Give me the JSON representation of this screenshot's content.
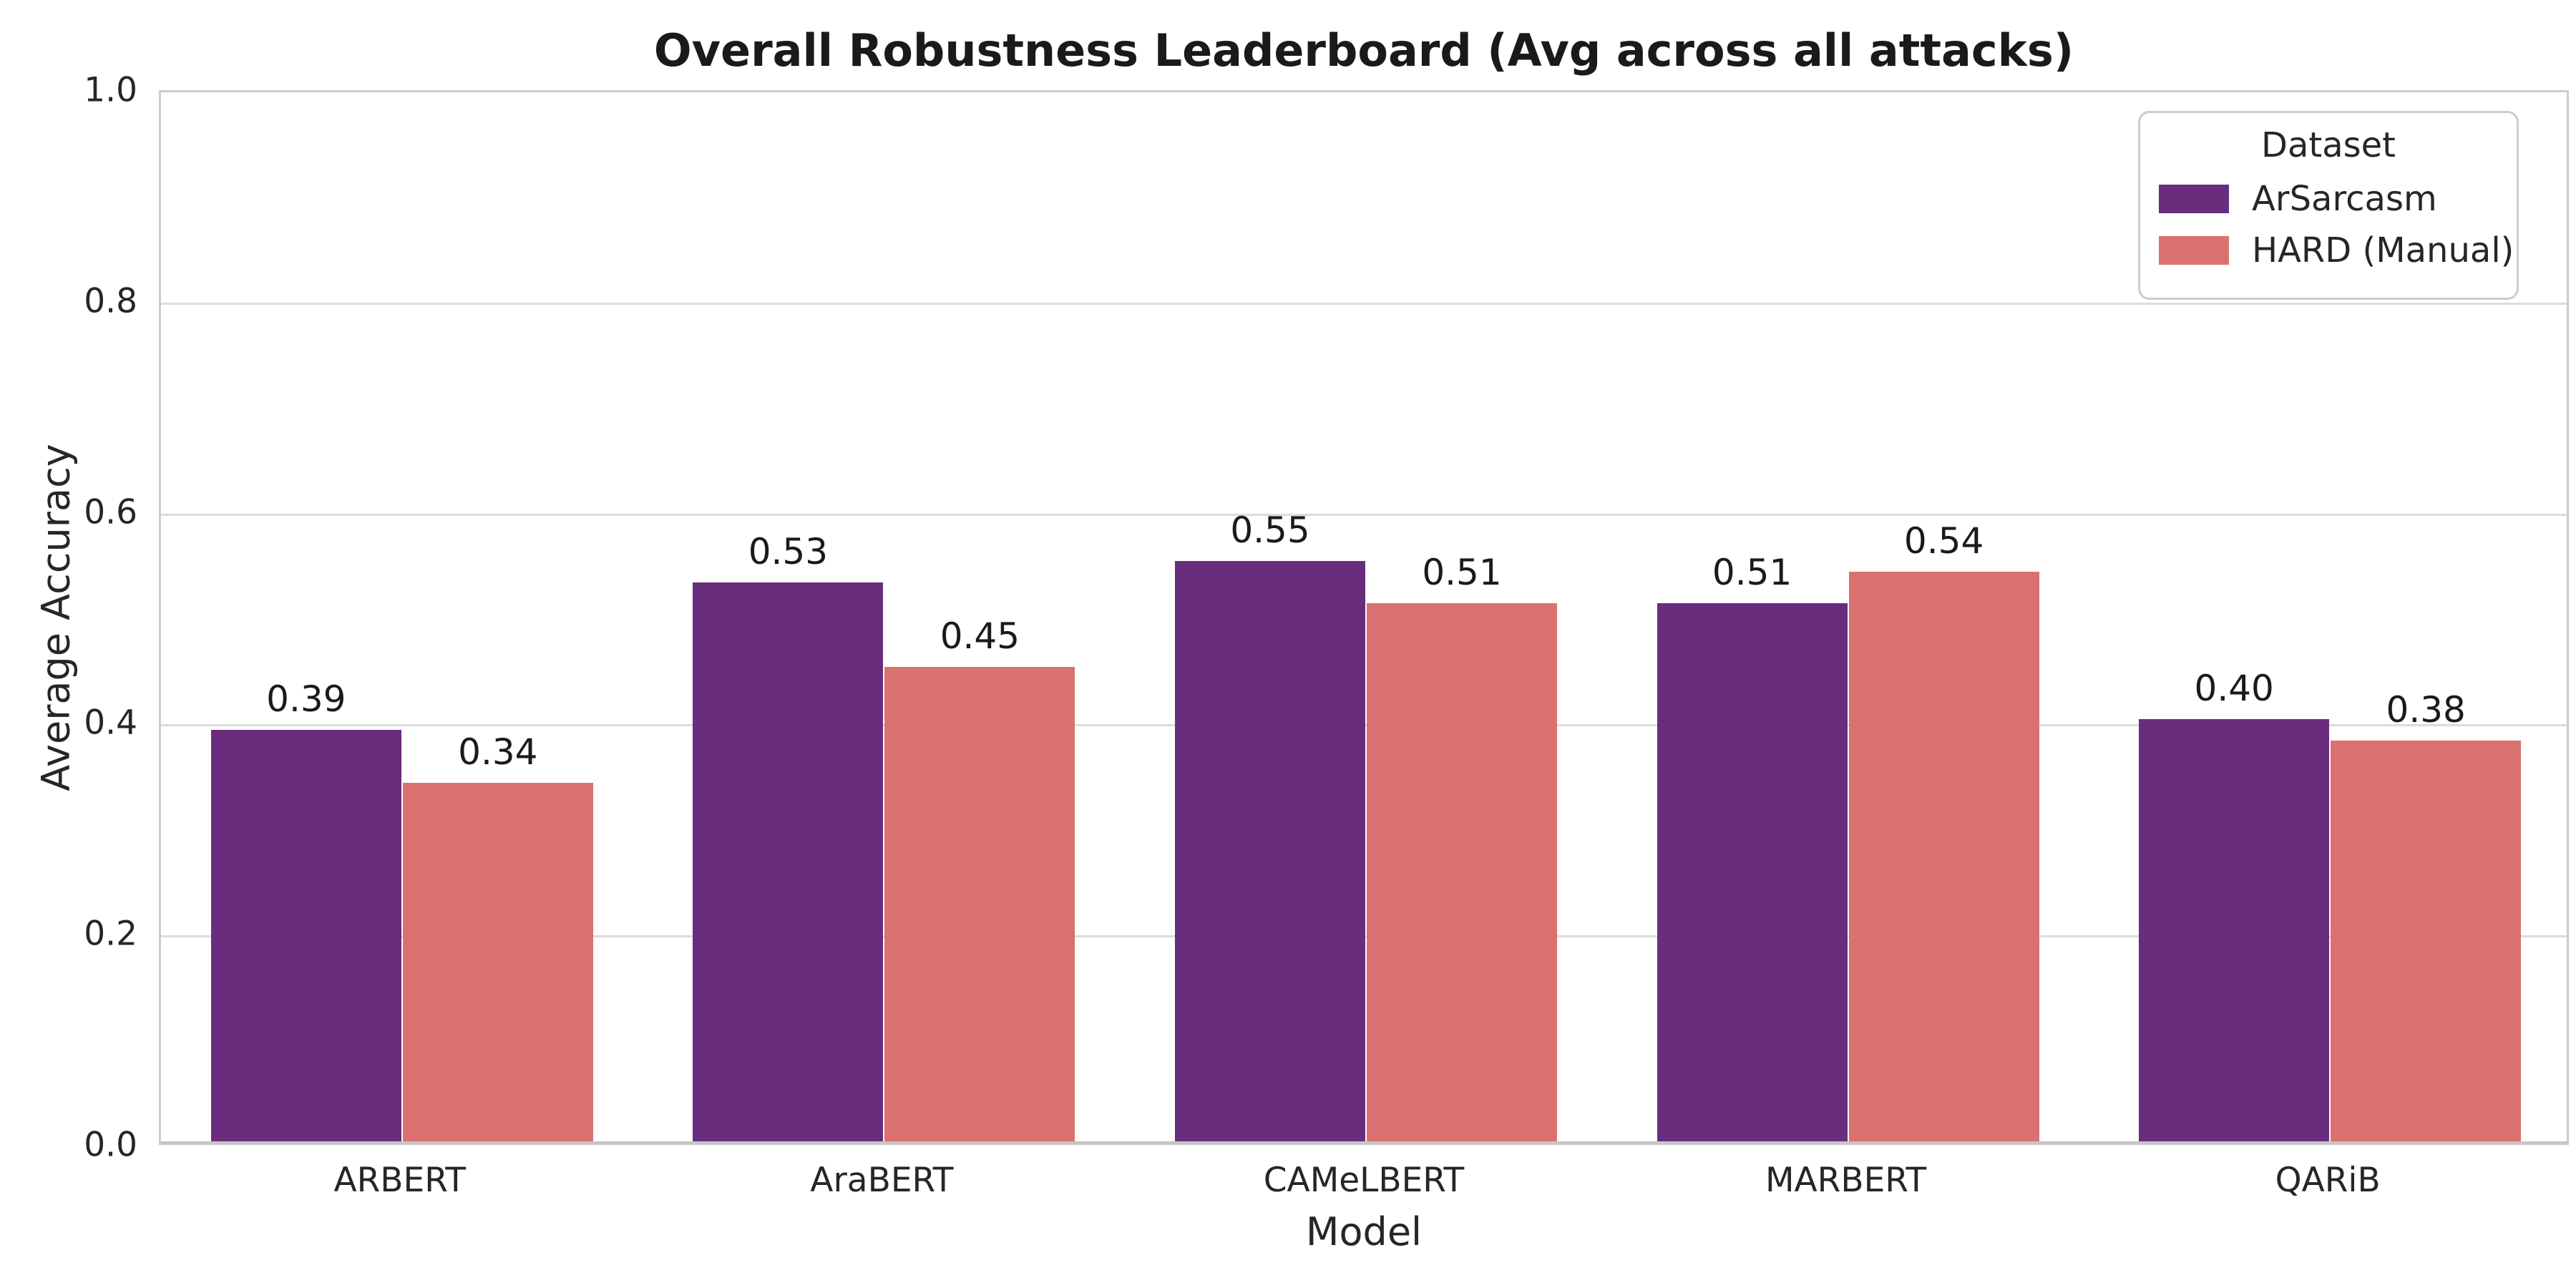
{
  "chart_data": {
    "type": "bar",
    "title": "Overall Robustness Leaderboard (Avg across all attacks)",
    "xlabel": "Model",
    "ylabel": "Average Accuracy",
    "ylim": [
      0.0,
      1.0
    ],
    "ytick_labels": [
      "0.0",
      "0.2",
      "0.4",
      "0.6",
      "0.8",
      "1.0"
    ],
    "yticks": [
      0.0,
      0.2,
      0.4,
      0.6,
      0.8,
      1.0
    ],
    "grid": "horizontal",
    "categories": [
      "ARBERT",
      "AraBERT",
      "CAMeLBERT",
      "MARBERT",
      "QARiB"
    ],
    "series": [
      {
        "name": "ArSarcasm",
        "color": "#692d7d",
        "values": [
          0.39,
          0.53,
          0.55,
          0.51,
          0.4
        ],
        "labels": [
          "0.39",
          "0.53",
          "0.55",
          "0.51",
          "0.40"
        ]
      },
      {
        "name": "HARD (Manual)",
        "color": "#da7170",
        "values": [
          0.34,
          0.45,
          0.51,
          0.54,
          0.38
        ],
        "labels": [
          "0.34",
          "0.45",
          "0.51",
          "0.54",
          "0.38"
        ]
      }
    ],
    "legend": {
      "title": "Dataset",
      "position": "upper right"
    }
  },
  "colors": {
    "background": "#ffffff",
    "gridline": "#dcdcdc",
    "spine": "#cccccc",
    "text": "#262626",
    "title_text": "#1a1a1a"
  }
}
